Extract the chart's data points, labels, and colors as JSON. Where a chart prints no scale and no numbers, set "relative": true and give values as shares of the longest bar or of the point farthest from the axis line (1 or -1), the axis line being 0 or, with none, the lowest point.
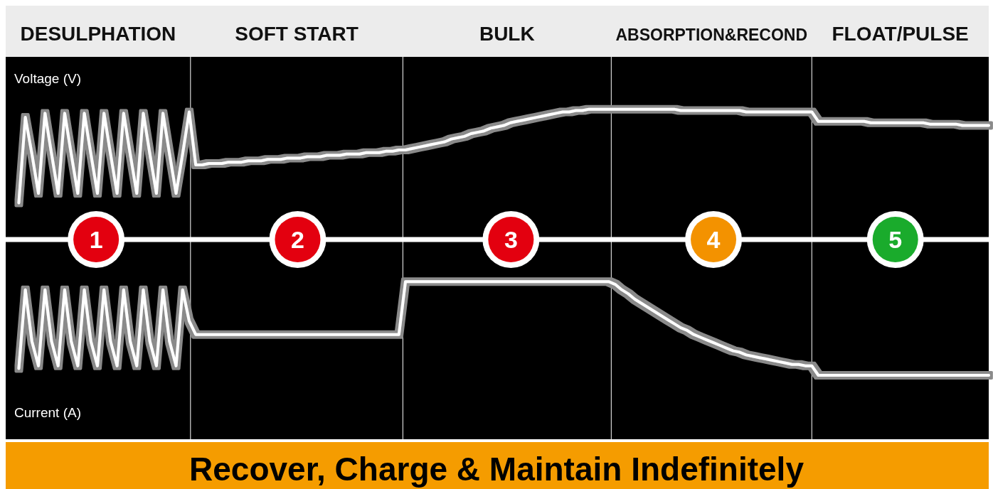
{
  "chart_data": {
    "type": "line",
    "title": "Recover, Charge & Maintain Indefinitely",
    "relative": true,
    "categories": [
      null,
      null,
      null,
      null,
      null,
      null,
      null,
      null,
      null,
      null,
      null,
      null,
      null,
      null,
      null,
      null,
      null,
      null,
      null,
      null,
      null,
      null,
      null,
      null,
      null,
      null,
      null,
      null,
      null,
      null,
      null,
      null,
      null,
      null,
      null,
      null,
      null,
      null,
      null,
      null,
      null,
      null,
      null,
      null,
      null,
      null,
      null,
      null,
      null,
      null,
      null,
      null,
      null,
      null,
      null,
      null,
      null,
      null,
      null,
      null,
      null,
      null,
      null,
      null,
      null,
      null,
      null,
      null,
      null,
      null,
      null,
      null,
      null,
      null,
      null,
      null,
      null,
      null,
      null,
      null,
      null,
      null,
      null,
      null,
      null,
      null,
      null,
      null,
      null,
      null,
      null,
      null,
      null,
      null,
      null,
      null,
      null,
      null,
      null,
      null,
      null,
      null,
      null,
      null,
      null,
      null,
      null,
      null,
      null,
      null,
      null,
      null,
      null,
      null,
      null,
      null,
      null,
      null,
      null,
      null,
      null,
      null,
      null,
      null,
      null,
      null,
      null,
      null,
      null,
      null,
      null,
      null,
      null,
      null,
      null,
      null,
      null,
      null,
      null,
      null,
      null,
      null,
      null,
      null,
      null,
      null,
      null,
      null,
      null,
      null,
      null
    ],
    "annotations": [
      "DESULPHATION",
      "SOFT START",
      "BULK",
      "ABSORPTION&RECOND",
      "FLOAT/PULSE",
      {
        "text": "1"
      },
      {
        "text": "2"
      },
      {
        "text": "3"
      },
      {
        "text": "4"
      },
      {
        "text": "5"
      }
    ],
    "series": [
      {
        "name": "Voltage (V)",
        "color": "#ffffff",
        "values": [
          null,
          null,
          0.27,
          0.9,
          0.63,
          0.34,
          0.93,
          0.63,
          0.34,
          0.93,
          0.63,
          0.34,
          0.93,
          0.63,
          0.34,
          0.93,
          0.63,
          0.34,
          0.93,
          0.63,
          0.34,
          0.93,
          0.63,
          0.34,
          0.93,
          0.63,
          0.34,
          0.63,
          0.94,
          0.55,
          0.55,
          0.56,
          0.56,
          0.56,
          0.57,
          0.57,
          0.57,
          0.58,
          0.58,
          0.58,
          0.59,
          0.59,
          0.59,
          0.6,
          0.6,
          0.6,
          0.61,
          0.61,
          0.61,
          0.62,
          0.62,
          0.62,
          0.63,
          0.63,
          0.63,
          0.64,
          0.64,
          0.64,
          0.65,
          0.65,
          0.66,
          0.66,
          0.67,
          0.68,
          0.69,
          0.7,
          0.71,
          0.72,
          0.74,
          0.75,
          0.76,
          0.78,
          0.79,
          0.8,
          0.82,
          0.83,
          0.84,
          0.86,
          0.87,
          0.88,
          0.89,
          0.9,
          0.91,
          0.92,
          0.93,
          0.94,
          0.94,
          0.95,
          0.95,
          0.96,
          0.96,
          0.96,
          0.96,
          0.96,
          0.96,
          0.96,
          0.96,
          0.96,
          0.96,
          0.96,
          0.96,
          0.96,
          0.96,
          0.95,
          0.95,
          0.95,
          0.95,
          0.95,
          0.95,
          0.95,
          0.95,
          0.95,
          0.95,
          0.94,
          0.94,
          0.94,
          0.94,
          0.94,
          0.94,
          0.94,
          0.94,
          0.94,
          0.94,
          0.94,
          0.87,
          0.87,
          0.87,
          0.87,
          0.87,
          0.87,
          0.87,
          0.87,
          0.86,
          0.86,
          0.86,
          0.86,
          0.86,
          0.86,
          0.86,
          0.86,
          0.86,
          0.85,
          0.85,
          0.85,
          0.85,
          0.85,
          0.84,
          0.84,
          0.84,
          0.84,
          0.84
        ]
      },
      {
        "name": "Current (A)",
        "color": "#ffffff",
        "values": [
          null,
          null,
          -0.95,
          -0.37,
          -0.75,
          -0.93,
          -0.37,
          -0.75,
          -0.93,
          -0.37,
          -0.75,
          -0.93,
          -0.37,
          -0.75,
          -0.93,
          -0.37,
          -0.75,
          -0.93,
          -0.37,
          -0.75,
          -0.93,
          -0.37,
          -0.75,
          -0.93,
          -0.37,
          -0.75,
          -0.93,
          -0.37,
          -0.6,
          -0.7,
          -0.7,
          -0.7,
          -0.7,
          -0.7,
          -0.7,
          -0.7,
          -0.7,
          -0.7,
          -0.7,
          -0.7,
          -0.7,
          -0.7,
          -0.7,
          -0.7,
          -0.7,
          -0.7,
          -0.7,
          -0.7,
          -0.7,
          -0.7,
          -0.7,
          -0.7,
          -0.7,
          -0.7,
          -0.7,
          -0.7,
          -0.7,
          -0.7,
          -0.7,
          -0.7,
          -0.7,
          -0.31,
          -0.31,
          -0.31,
          -0.31,
          -0.31,
          -0.31,
          -0.31,
          -0.31,
          -0.31,
          -0.31,
          -0.31,
          -0.31,
          -0.31,
          -0.31,
          -0.31,
          -0.31,
          -0.31,
          -0.31,
          -0.31,
          -0.31,
          -0.31,
          -0.31,
          -0.31,
          -0.31,
          -0.31,
          -0.31,
          -0.31,
          -0.31,
          -0.31,
          -0.31,
          -0.31,
          -0.31,
          -0.33,
          -0.37,
          -0.4,
          -0.44,
          -0.47,
          -0.5,
          -0.53,
          -0.56,
          -0.59,
          -0.62,
          -0.65,
          -0.67,
          -0.7,
          -0.72,
          -0.74,
          -0.76,
          -0.78,
          -0.8,
          -0.82,
          -0.83,
          -0.85,
          -0.86,
          -0.87,
          -0.88,
          -0.89,
          -0.9,
          -0.91,
          -0.92,
          -0.92,
          -0.93,
          -0.93,
          -1,
          -1,
          -1,
          -1,
          -1,
          -1,
          -1,
          -1,
          -1,
          -1,
          -1,
          -1,
          -1,
          -1,
          -1,
          -1,
          -1,
          -1,
          -1,
          -1,
          -1,
          -1,
          -1,
          -1,
          -1,
          -1,
          -1
        ]
      }
    ]
  }
}
